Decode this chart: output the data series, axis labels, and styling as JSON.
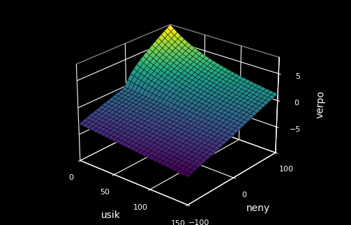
{
  "xlabel": "usik",
  "ylabel": "neny",
  "zlabel": "verpo",
  "usik_range": [
    0,
    150
  ],
  "neny_range": [
    -100,
    100
  ],
  "verpo_range": [
    -10,
    8
  ],
  "xticks": [
    0,
    50,
    100,
    150
  ],
  "yticks": [
    -100,
    0,
    100
  ],
  "zticks": [
    -5,
    0,
    5
  ],
  "background_color": "#000000",
  "grid_color": "white",
  "label_color": "white",
  "tick_color": "white",
  "colormap": "viridis",
  "elev": 25,
  "azim": -50,
  "n_points": 30
}
